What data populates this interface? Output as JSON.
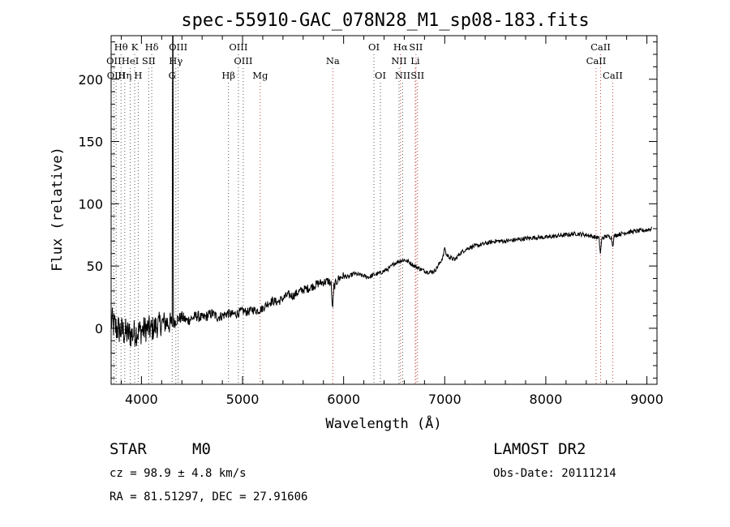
{
  "chart_data": {
    "type": "line",
    "title": "spec-55910-GAC_078N28_M1_sp08-183.fits",
    "xlabel": "Wavelength (Å)",
    "ylabel": "Flux (relative)",
    "xlim": [
      3700,
      9100
    ],
    "ylim": [
      -45,
      235
    ],
    "x_ticks": [
      4000,
      5000,
      6000,
      7000,
      8000,
      9000
    ],
    "y_ticks": [
      0,
      50,
      100,
      150,
      200
    ],
    "grid": false,
    "series": [
      {
        "color": "#000000",
        "spike": {
          "x": 4310,
          "y": 235
        },
        "continuum": [
          [
            3700,
            5
          ],
          [
            3750,
            0
          ],
          [
            3800,
            -2
          ],
          [
            3850,
            -4
          ],
          [
            3900,
            -5
          ],
          [
            3950,
            -3
          ],
          [
            4000,
            -2
          ],
          [
            4050,
            0
          ],
          [
            4100,
            -1
          ],
          [
            4150,
            2
          ],
          [
            4200,
            4
          ],
          [
            4250,
            5
          ],
          [
            4300,
            3
          ],
          [
            4350,
            7
          ],
          [
            4400,
            9
          ],
          [
            4450,
            6
          ],
          [
            4500,
            8
          ],
          [
            4550,
            10
          ],
          [
            4600,
            8
          ],
          [
            4650,
            10
          ],
          [
            4700,
            12
          ],
          [
            4750,
            9
          ],
          [
            4800,
            10
          ],
          [
            4850,
            12
          ],
          [
            4900,
            11
          ],
          [
            4950,
            12
          ],
          [
            5000,
            14
          ],
          [
            5050,
            13
          ],
          [
            5100,
            15
          ],
          [
            5150,
            14
          ],
          [
            5200,
            16
          ],
          [
            5250,
            20
          ],
          [
            5300,
            22
          ],
          [
            5350,
            21
          ],
          [
            5400,
            24
          ],
          [
            5450,
            27
          ],
          [
            5500,
            26
          ],
          [
            5550,
            29
          ],
          [
            5600,
            31
          ],
          [
            5650,
            32
          ],
          [
            5700,
            34
          ],
          [
            5750,
            36
          ],
          [
            5800,
            37
          ],
          [
            5850,
            38
          ],
          [
            5900,
            33
          ],
          [
            5950,
            40
          ],
          [
            6000,
            42
          ],
          [
            6050,
            41
          ],
          [
            6100,
            44
          ],
          [
            6150,
            43
          ],
          [
            6200,
            42
          ],
          [
            6250,
            41
          ],
          [
            6300,
            43
          ],
          [
            6350,
            44
          ],
          [
            6400,
            46
          ],
          [
            6450,
            48
          ],
          [
            6500,
            52
          ],
          [
            6550,
            54
          ],
          [
            6600,
            55
          ],
          [
            6650,
            53
          ],
          [
            6700,
            50
          ],
          [
            6750,
            48
          ],
          [
            6800,
            46
          ],
          [
            6850,
            45
          ],
          [
            6900,
            46
          ],
          [
            6950,
            52
          ],
          [
            7000,
            60
          ],
          [
            7050,
            57
          ],
          [
            7100,
            55
          ],
          [
            7150,
            60
          ],
          [
            7200,
            63
          ],
          [
            7250,
            65
          ],
          [
            7300,
            66
          ],
          [
            7350,
            67
          ],
          [
            7400,
            68
          ],
          [
            7450,
            69
          ],
          [
            7500,
            70
          ],
          [
            7600,
            70
          ],
          [
            7700,
            71
          ],
          [
            7800,
            72
          ],
          [
            7900,
            73
          ],
          [
            8000,
            73
          ],
          [
            8100,
            74
          ],
          [
            8200,
            75
          ],
          [
            8300,
            76
          ],
          [
            8400,
            75
          ],
          [
            8500,
            73
          ],
          [
            8550,
            72
          ],
          [
            8600,
            74
          ],
          [
            8650,
            73
          ],
          [
            8700,
            75
          ],
          [
            8800,
            77
          ],
          [
            8900,
            78
          ],
          [
            9000,
            79
          ],
          [
            9050,
            80
          ]
        ],
        "dips": [
          {
            "x": 5890,
            "y": 15
          },
          {
            "x": 7000,
            "y": 65
          },
          {
            "x": 8540,
            "y": 60
          },
          {
            "x": 8662,
            "y": 65
          }
        ]
      }
    ],
    "line_markers": [
      {
        "label": "Hθ",
        "x": 3798,
        "color": "#555555",
        "row": 1
      },
      {
        "label": "OII",
        "x": 3727,
        "color": "#555555",
        "row": 2
      },
      {
        "label": "OIII",
        "x": 3750,
        "color": "#555555",
        "row": 3
      },
      {
        "label": "Hη",
        "x": 3835,
        "color": "#555555",
        "row": 3
      },
      {
        "label": "K",
        "x": 3933,
        "color": "#555555",
        "row": 1
      },
      {
        "label": "HeI",
        "x": 3889,
        "color": "#555555",
        "row": 2
      },
      {
        "label": "SII",
        "x": 4072,
        "color": "#555555",
        "row": 2
      },
      {
        "label": "H",
        "x": 3968,
        "color": "#555555",
        "row": 3
      },
      {
        "label": "Hδ",
        "x": 4102,
        "color": "#555555",
        "row": 1
      },
      {
        "label": "OIII",
        "x": 4363,
        "color": "#555555",
        "row": 1
      },
      {
        "label": "Hγ",
        "x": 4340,
        "color": "#555555",
        "row": 2
      },
      {
        "label": "G",
        "x": 4304,
        "color": "#555555",
        "row": 3
      },
      {
        "label": "OIII",
        "x": 4959,
        "color": "#555555",
        "row": 1
      },
      {
        "label": "OIII",
        "x": 5007,
        "color": "#555555",
        "row": 2
      },
      {
        "label": "Hβ",
        "x": 4861,
        "color": "#555555",
        "row": 3
      },
      {
        "label": "Mg",
        "x": 5175,
        "color": "#c04040",
        "row": 3
      },
      {
        "label": "Na",
        "x": 5893,
        "color": "#c04040",
        "row": 2
      },
      {
        "label": "OI",
        "x": 6300,
        "color": "#555555",
        "row": 1
      },
      {
        "label": "OI",
        "x": 6364,
        "color": "#555555",
        "row": 3
      },
      {
        "label": "Hα",
        "x": 6563,
        "color": "#c04040",
        "row": 1
      },
      {
        "label": "SII",
        "x": 6716,
        "color": "#c04040",
        "row": 1
      },
      {
        "label": "NII",
        "x": 6548,
        "color": "#555555",
        "row": 2
      },
      {
        "label": "Li",
        "x": 6708,
        "color": "#c04040",
        "row": 2
      },
      {
        "label": "NII",
        "x": 6584,
        "color": "#555555",
        "row": 3
      },
      {
        "label": "SII",
        "x": 6731,
        "color": "#c04040",
        "row": 3
      },
      {
        "label": "CaII",
        "x": 8542,
        "color": "#c04040",
        "row": 1
      },
      {
        "label": "CaII",
        "x": 8498,
        "color": "#c04040",
        "row": 2
      },
      {
        "label": "CaII",
        "x": 8662,
        "color": "#c04040",
        "row": 3
      }
    ]
  },
  "info": {
    "class": "STAR",
    "subclass": "M0",
    "survey": "LAMOST DR2",
    "redshift": "cz = 98.9 ± 4.8 km/s",
    "obs_date": "Obs-Date: 20111214",
    "coords": "RA =  81.51297, DEC =  27.91606"
  }
}
